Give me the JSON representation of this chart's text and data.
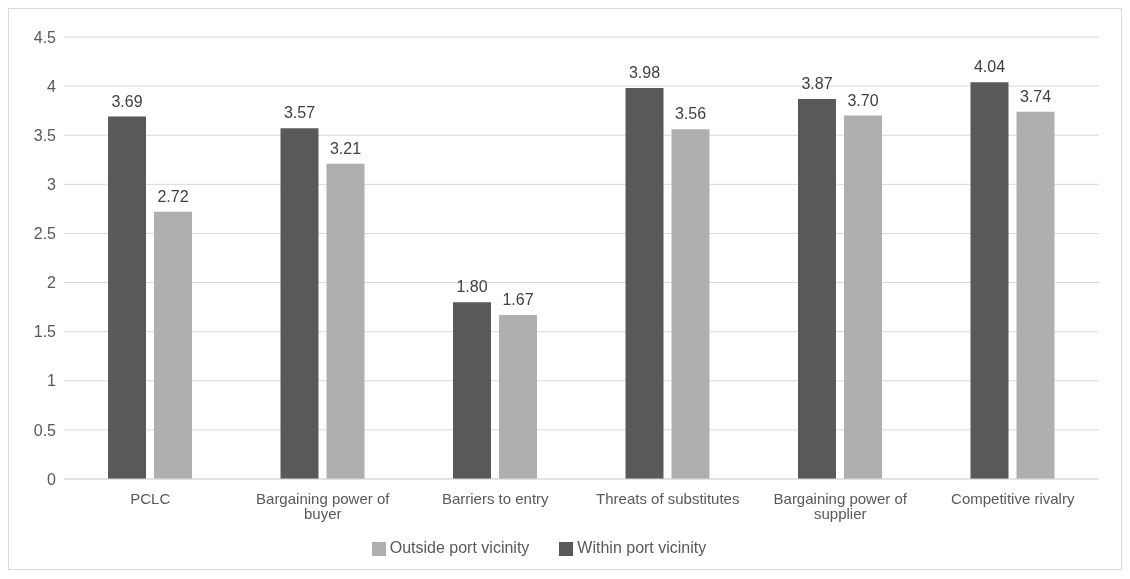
{
  "chart_data": {
    "type": "bar",
    "categories": [
      "PCLC",
      "Bargaining power of buyer",
      "Barriers to entry",
      "Threats of substitutes",
      "Bargaining power of supplier",
      "Competitive rivalry"
    ],
    "series": [
      {
        "name": "Within port vicinity",
        "color": "#595959",
        "values": [
          3.69,
          3.57,
          1.8,
          3.98,
          3.87,
          4.04
        ],
        "value_labels": [
          "3.69",
          "3.57",
          "1.80",
          "3.98",
          "3.87",
          "4.04"
        ]
      },
      {
        "name": "Outside port vicinity",
        "color": "#afafaf",
        "values": [
          2.72,
          3.21,
          1.67,
          3.56,
          3.7,
          3.74
        ],
        "value_labels": [
          "2.72",
          "3.21",
          "1.67",
          "3.56",
          "3.70",
          "3.74"
        ]
      }
    ],
    "ylim": [
      0,
      4.5
    ],
    "yticks": [
      0,
      0.5,
      1,
      1.5,
      2,
      2.5,
      3,
      3.5,
      4,
      4.5
    ],
    "grid": "y",
    "legend": "bottom"
  }
}
